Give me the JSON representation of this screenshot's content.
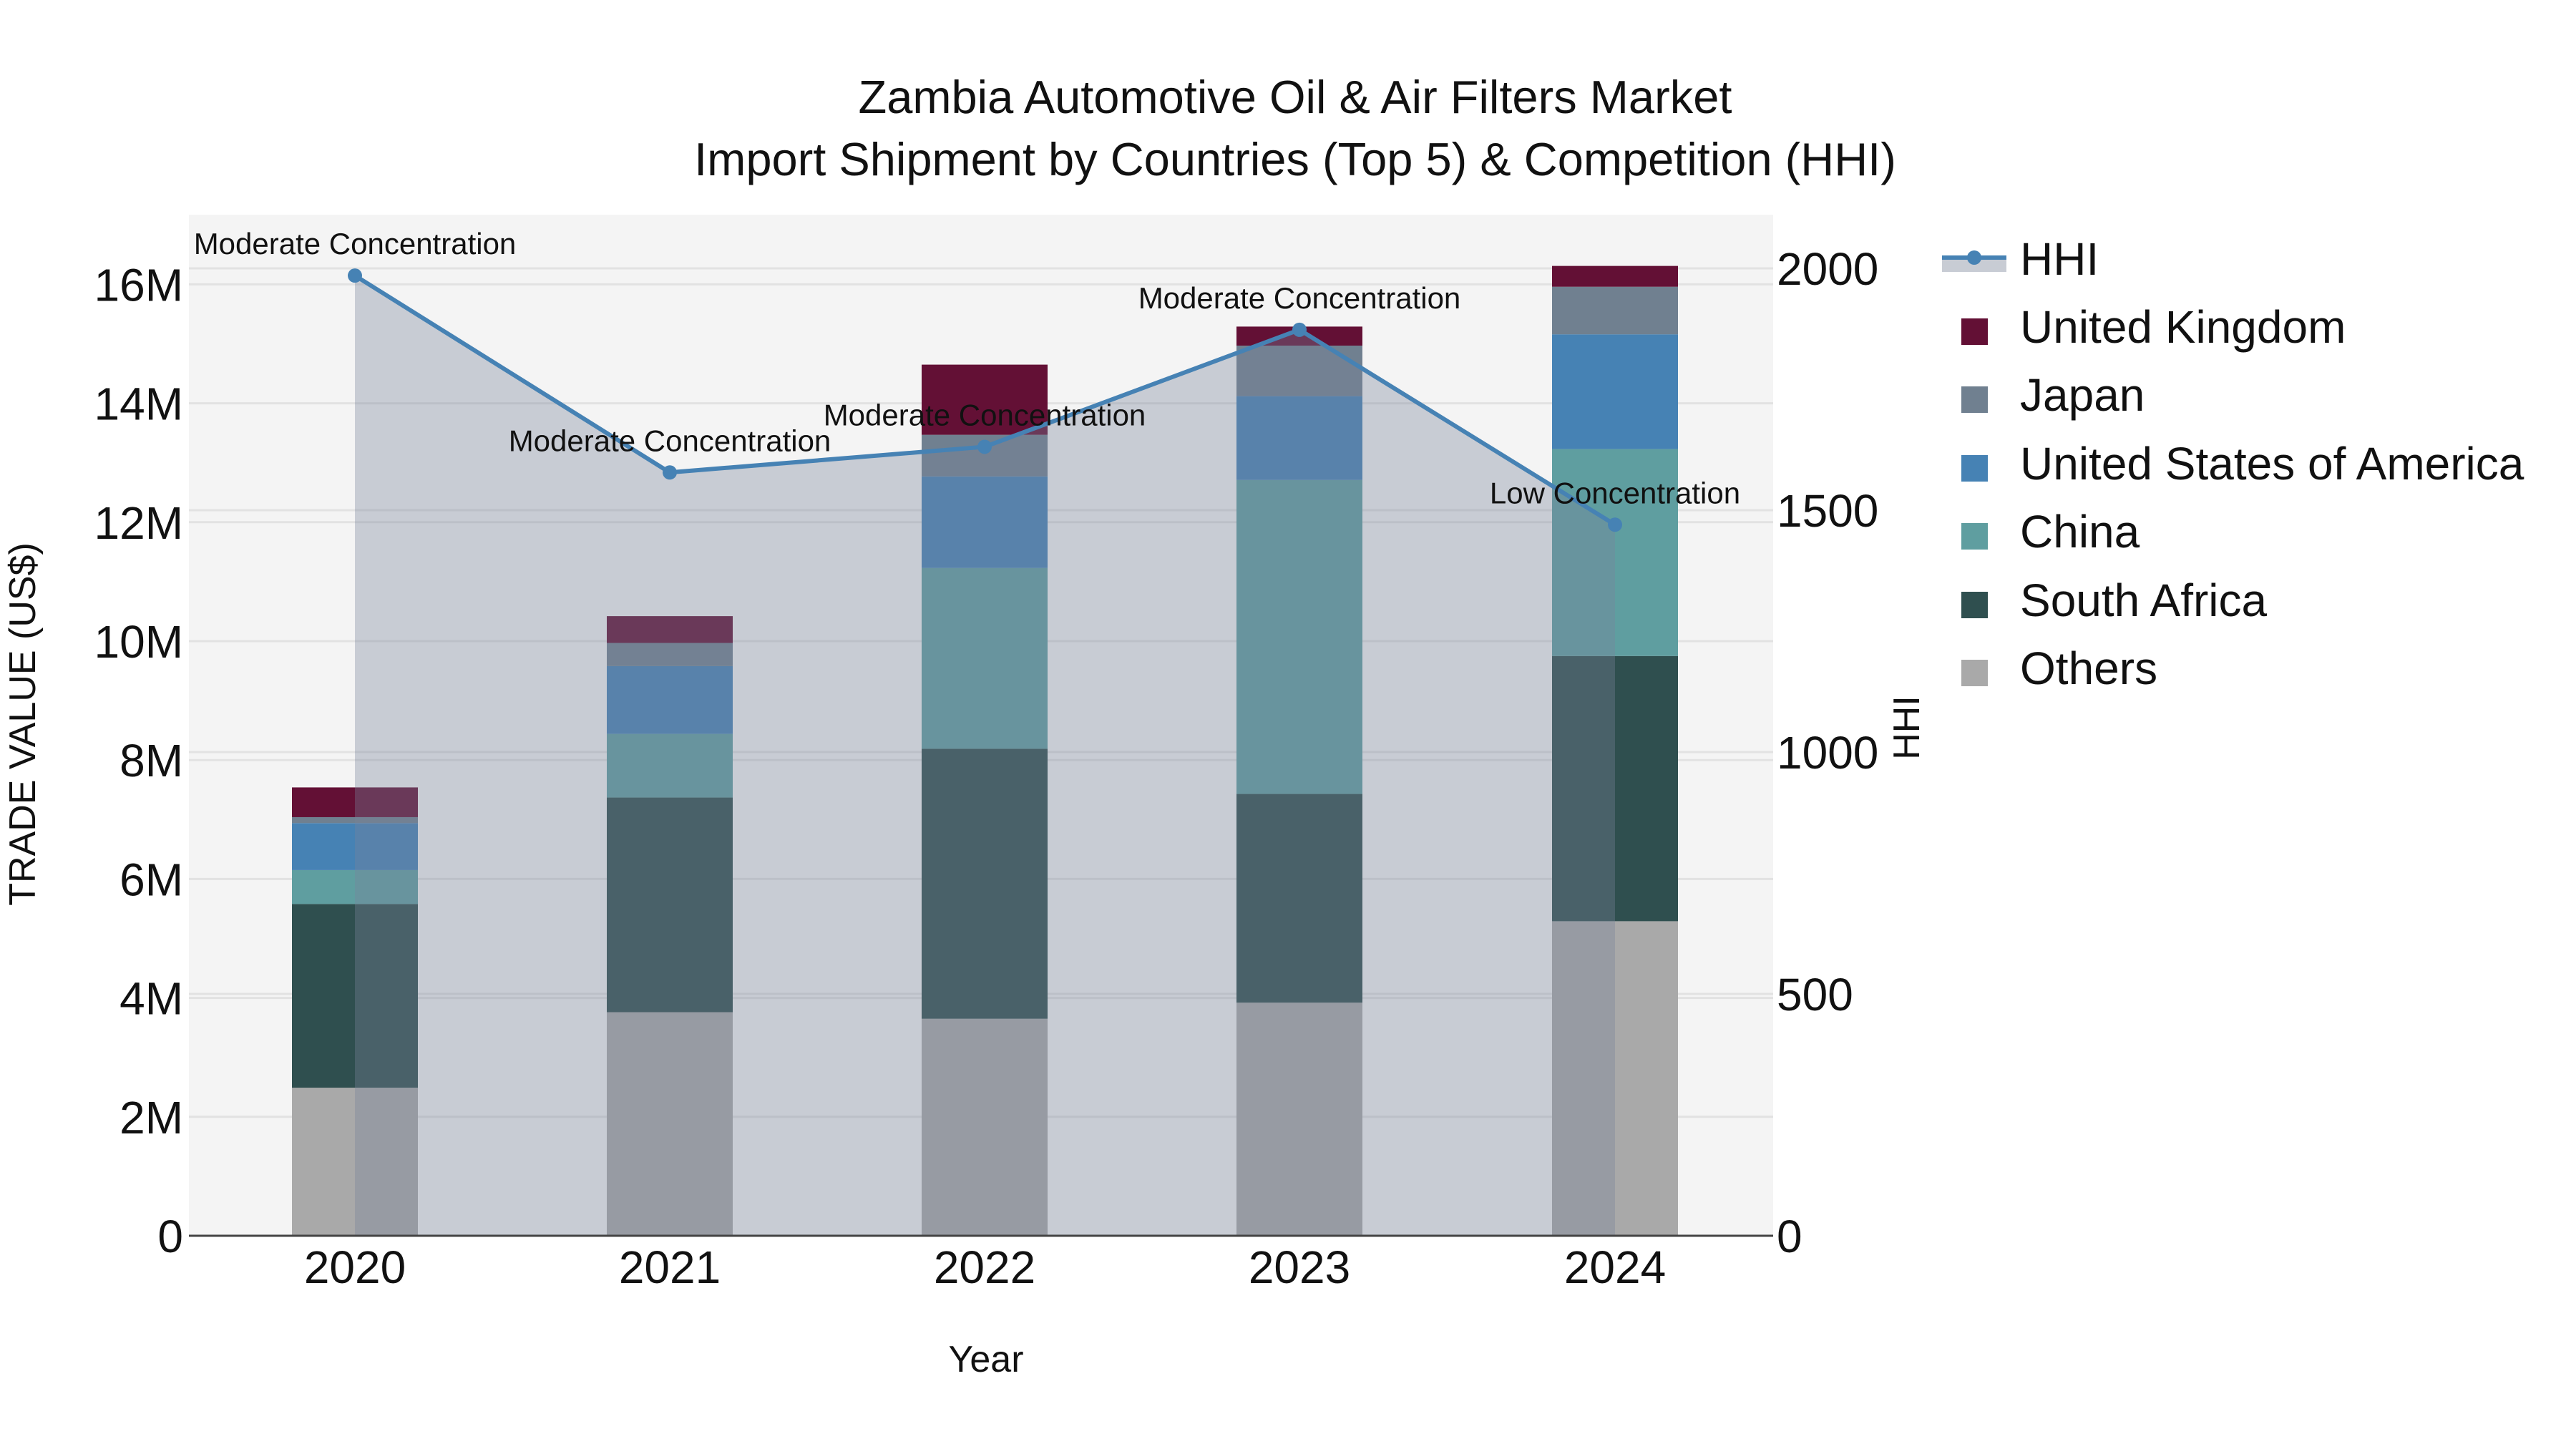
{
  "title": {
    "line1": "Zambia Automotive Oil & Air Filters Market",
    "line2": "Import Shipment by Countries (Top 5) & Competition (HHI)"
  },
  "axes": {
    "x_title": "Year",
    "y_left_title": "TRADE VALUE (US$)",
    "y_right_title": "HHI",
    "y_left_ticks": [
      "0",
      "2M",
      "4M",
      "6M",
      "8M",
      "10M",
      "12M",
      "14M",
      "16M"
    ],
    "y_right_ticks": [
      "0",
      "500",
      "1000",
      "1500",
      "2000"
    ]
  },
  "legend": {
    "items": [
      {
        "label": "HHI",
        "type": "line",
        "color": "#4682b4"
      },
      {
        "label": "United Kingdom",
        "type": "bar",
        "color": "#631035"
      },
      {
        "label": "Japan",
        "type": "bar",
        "color": "#708090"
      },
      {
        "label": "United States of America",
        "type": "bar",
        "color": "#4682b4"
      },
      {
        "label": "China",
        "type": "bar",
        "color": "#5f9ea0"
      },
      {
        "label": "South Africa",
        "type": "bar",
        "color": "#2f4f4f"
      },
      {
        "label": "Others",
        "type": "bar",
        "color": "#a9a9a9"
      }
    ]
  },
  "colors": {
    "plot_bg": "#f4f4f4",
    "grid": "#e2e2e2",
    "axis_line": "#444444",
    "hhi_line": "#4682b4",
    "hhi_fill": "rgba(120,131,154,0.355)"
  },
  "chart_data": {
    "type": "bar",
    "title": "Zambia Automotive Oil & Air Filters Market — Import Shipment by Countries (Top 5) & Competition (HHI)",
    "xlabel": "Year",
    "ylabel": "TRADE VALUE (US$)",
    "y2label": "HHI",
    "ylim": [
      0,
      17200000
    ],
    "y2lim": [
      0,
      2105
    ],
    "grid": true,
    "legend_position": "right",
    "stacked": true,
    "categories": [
      "2020",
      "2021",
      "2022",
      "2023",
      "2024"
    ],
    "series": [
      {
        "name": "Others",
        "color": "#a9a9a9",
        "values": [
          2490000,
          3760000,
          3650000,
          3920000,
          5290000
        ]
      },
      {
        "name": "South Africa",
        "color": "#2f4f4f",
        "values": [
          3090000,
          3610000,
          4540000,
          3510000,
          4460000
        ]
      },
      {
        "name": "China",
        "color": "#5f9ea0",
        "values": [
          570000,
          1070000,
          3040000,
          5280000,
          3480000
        ]
      },
      {
        "name": "United States of America",
        "color": "#4682b4",
        "values": [
          790000,
          1140000,
          1540000,
          1410000,
          1930000
        ]
      },
      {
        "name": "Japan",
        "color": "#708090",
        "values": [
          100000,
          390000,
          700000,
          850000,
          800000
        ]
      },
      {
        "name": "United Kingdom",
        "color": "#631035",
        "values": [
          500000,
          450000,
          1180000,
          320000,
          350000
        ]
      }
    ],
    "totals": [
      7540000,
      10420000,
      14650000,
      15290000,
      16310000
    ],
    "line_series": {
      "name": "HHI",
      "axis": "right",
      "type": "line+area",
      "color": "#4682b4",
      "values": [
        1985,
        1578,
        1631,
        1873,
        1470
      ],
      "annotations": [
        "Moderate Concentration",
        "Moderate Concentration",
        "Moderate Concentration",
        "Moderate Concentration",
        "Low Concentration"
      ]
    }
  }
}
